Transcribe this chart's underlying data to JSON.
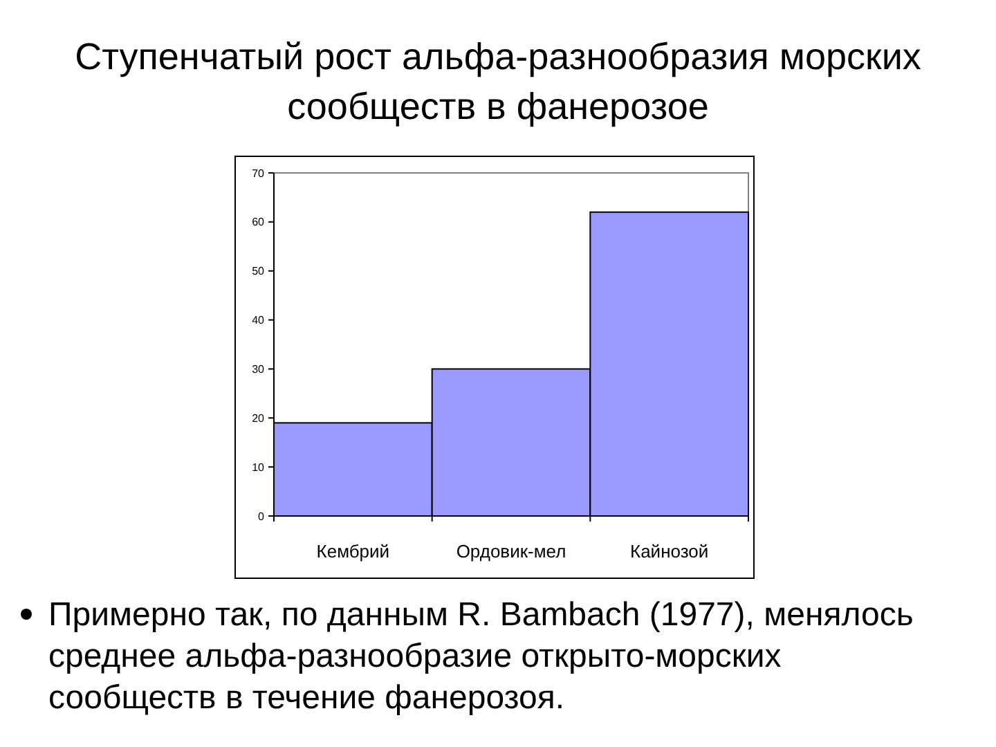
{
  "chart_data": {
    "type": "bar",
    "title": "Ступенчатый рост альфа-разнообразия морских сообществ в фанерозое",
    "categories": [
      "Кембрий",
      "Ордовик-мел",
      "Кайнозой"
    ],
    "values": [
      19,
      30,
      62
    ],
    "color": "#9999ff",
    "ylim": [
      0,
      70
    ],
    "yticks": [
      0,
      10,
      20,
      30,
      40,
      50,
      60,
      70
    ],
    "grid": false,
    "annotations": [
      "Примерно так, по данным R. Bambach (1977), менялось среднее альфа-разнообразие открыто-морских сообществ в течение фанерозоя."
    ]
  }
}
